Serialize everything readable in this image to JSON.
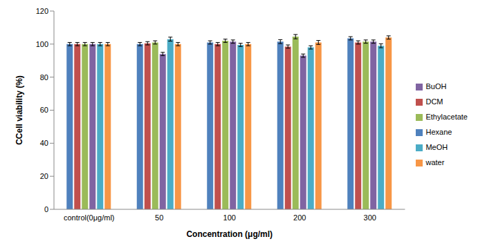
{
  "chart_data": {
    "type": "bar",
    "x_label": "Concentration (μg/ml)",
    "y_label": "CCell viability (%)",
    "categories": [
      "control(0μg/ml)",
      "50",
      "100",
      "200",
      "300"
    ],
    "ylim": [
      0,
      120
    ],
    "yticks": [
      0,
      20,
      40,
      60,
      80,
      100,
      120
    ],
    "grid": false,
    "legend": "right",
    "series": [
      {
        "name": "Hexane",
        "color": "#4f81bd",
        "values": [
          100,
          100,
          101,
          101.5,
          103.5
        ],
        "errors": [
          1,
          1,
          1,
          1.2,
          1
        ]
      },
      {
        "name": "DCM",
        "color": "#c0504d",
        "values": [
          100,
          100.5,
          100,
          98.5,
          101
        ],
        "errors": [
          1,
          1,
          1,
          1,
          1
        ]
      },
      {
        "name": "Ethylacetate",
        "color": "#9bbb59",
        "values": [
          100,
          101,
          102,
          104.5,
          101.5
        ],
        "errors": [
          1,
          1,
          1,
          1.3,
          1
        ]
      },
      {
        "name": "BuOH",
        "color": "#8064a2",
        "values": [
          100,
          94,
          101.5,
          93,
          101.5
        ],
        "errors": [
          1,
          1,
          1,
          1,
          1
        ]
      },
      {
        "name": "MeOH",
        "color": "#4bacc6",
        "values": [
          100,
          103,
          99.5,
          98,
          99
        ],
        "errors": [
          1,
          1.2,
          1,
          1,
          1.2
        ]
      },
      {
        "name": "water",
        "color": "#f79646",
        "values": [
          100,
          100,
          100,
          101,
          104
        ],
        "errors": [
          1,
          1,
          1,
          1.2,
          1
        ]
      }
    ]
  }
}
